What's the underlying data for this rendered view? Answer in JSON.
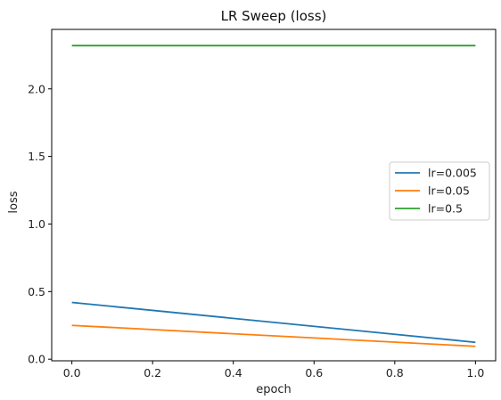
{
  "chart_data": {
    "type": "line",
    "title": "LR Sweep (loss)",
    "xlabel": "epoch",
    "ylabel": "loss",
    "xlim": [
      -0.05,
      1.05
    ],
    "ylim": [
      -0.012,
      2.44
    ],
    "xticks": [
      0.0,
      0.2,
      0.4,
      0.6,
      0.8,
      1.0
    ],
    "xtick_labels": [
      "0.0",
      "0.2",
      "0.4",
      "0.6",
      "0.8",
      "1.0"
    ],
    "yticks": [
      0.0,
      0.5,
      1.0,
      1.5,
      2.0
    ],
    "ytick_labels": [
      "0.0",
      "0.5",
      "1.0",
      "1.5",
      "2.0"
    ],
    "grid": false,
    "legend_position": "center-right",
    "x": [
      0,
      1
    ],
    "series": [
      {
        "name": "lr=0.005",
        "color": "#1f77b4",
        "values": [
          0.42,
          0.125
        ]
      },
      {
        "name": "lr=0.05",
        "color": "#ff7f0e",
        "values": [
          0.25,
          0.095
        ]
      },
      {
        "name": "lr=0.5",
        "color": "#2ca02c",
        "values": [
          2.32,
          2.32
        ]
      }
    ]
  }
}
